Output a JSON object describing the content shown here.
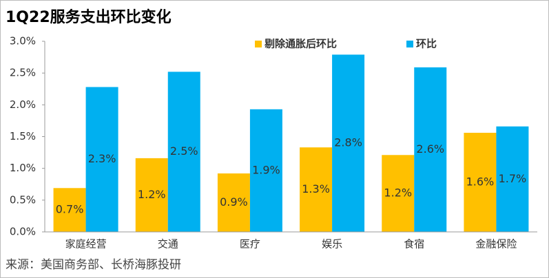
{
  "chart_data": {
    "type": "bar",
    "title": "1Q22服务支出环比变化",
    "categories": [
      "家庭经营",
      "交通",
      "医疗",
      "娱乐",
      "食宿",
      "金融保险"
    ],
    "series": [
      {
        "name": "剔除通胀后环比",
        "color": "#FFC000",
        "values": [
          0.69,
          1.16,
          0.92,
          1.33,
          1.21,
          1.56
        ],
        "value_labels": [
          "0.7%",
          "1.2%",
          "0.9%",
          "1.3%",
          "1.2%",
          "1.6%"
        ]
      },
      {
        "name": "环比",
        "color": "#00B0F0",
        "values": [
          2.28,
          2.52,
          1.93,
          2.79,
          2.59,
          1.66
        ],
        "value_labels": [
          "2.3%",
          "2.5%",
          "1.9%",
          "2.8%",
          "2.6%",
          "1.7%"
        ]
      }
    ],
    "ylim": [
      0,
      3
    ],
    "yticks": [
      {
        "value": 0,
        "label": "0.0%"
      },
      {
        "value": 0.5,
        "label": "0.5%"
      },
      {
        "value": 1,
        "label": "1.0%"
      },
      {
        "value": 1.5,
        "label": "1.5%"
      },
      {
        "value": 2,
        "label": "2.0%"
      },
      {
        "value": 2.5,
        "label": "2.5%"
      },
      {
        "value": 3,
        "label": "3.0%"
      }
    ],
    "legend": "top",
    "source": "来源：美国商务部、长桥海豚投研"
  }
}
